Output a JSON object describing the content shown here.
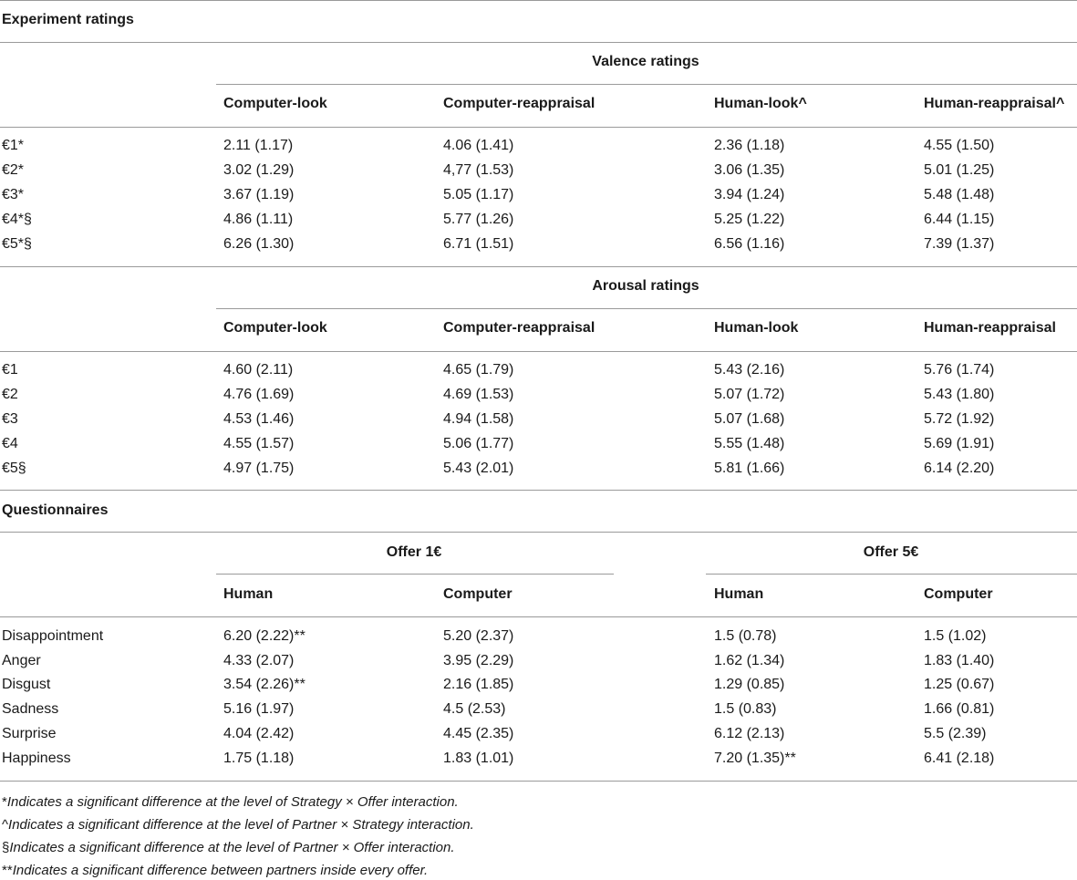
{
  "table": {
    "sections": {
      "experiment": "Experiment ratings",
      "questionnaires": "Questionnaires"
    },
    "valence": {
      "title": "Valence ratings",
      "columns": [
        "Computer-look",
        "Computer-reappraisal",
        "Human-look^",
        "Human-reappraisal^"
      ],
      "rows": [
        {
          "label": "€1*",
          "values": [
            "2.11 (1.17)",
            "4.06 (1.41)",
            "2.36 (1.18)",
            "4.55 (1.50)"
          ]
        },
        {
          "label": "€2*",
          "values": [
            "3.02 (1.29)",
            "4,77 (1.53)",
            "3.06 (1.35)",
            "5.01 (1.25)"
          ]
        },
        {
          "label": "€3*",
          "values": [
            "3.67 (1.19)",
            "5.05 (1.17)",
            "3.94 (1.24)",
            "5.48 (1.48)"
          ]
        },
        {
          "label": "€4*§",
          "values": [
            "4.86 (1.11)",
            "5.77 (1.26)",
            "5.25 (1.22)",
            "6.44 (1.15)"
          ]
        },
        {
          "label": "€5*§",
          "values": [
            "6.26 (1.30)",
            "6.71 (1.51)",
            "6.56 (1.16)",
            "7.39 (1.37)"
          ]
        }
      ]
    },
    "arousal": {
      "title": "Arousal ratings",
      "columns": [
        "Computer-look",
        "Computer-reappraisal",
        "Human-look",
        "Human-reappraisal"
      ],
      "rows": [
        {
          "label": "€1",
          "values": [
            "4.60 (2.11)",
            "4.65 (1.79)",
            "5.43 (2.16)",
            "5.76 (1.74)"
          ]
        },
        {
          "label": "€2",
          "values": [
            "4.76 (1.69)",
            "4.69 (1.53)",
            "5.07 (1.72)",
            "5.43 (1.80)"
          ]
        },
        {
          "label": "€3",
          "values": [
            "4.53 (1.46)",
            "4.94 (1.58)",
            "5.07 (1.68)",
            "5.72 (1.92)"
          ]
        },
        {
          "label": "€4",
          "values": [
            "4.55 (1.57)",
            "5.06 (1.77)",
            "5.55 (1.48)",
            "5.69 (1.91)"
          ]
        },
        {
          "label": "€5§",
          "values": [
            "4.97 (1.75)",
            "5.43 (2.01)",
            "5.81 (1.66)",
            "6.14 (2.20)"
          ]
        }
      ]
    },
    "questionnaire": {
      "groups": [
        "Offer 1€",
        "Offer 5€"
      ],
      "columns": [
        "Human",
        "Computer",
        "Human",
        "Computer"
      ],
      "rows": [
        {
          "label": "Disappointment",
          "values": [
            "6.20 (2.22)**",
            "5.20 (2.37)",
            "1.5 (0.78)",
            "1.5 (1.02)"
          ]
        },
        {
          "label": "Anger",
          "values": [
            "4.33 (2.07)",
            "3.95 (2.29)",
            "1.62 (1.34)",
            "1.83 (1.40)"
          ]
        },
        {
          "label": "Disgust",
          "values": [
            "3.54 (2.26)**",
            "2.16 (1.85)",
            "1.29 (0.85)",
            "1.25 (0.67)"
          ]
        },
        {
          "label": "Sadness",
          "values": [
            "5.16 (1.97)",
            "4.5 (2.53)",
            "1.5 (0.83)",
            "1.66 (0.81)"
          ]
        },
        {
          "label": "Surprise",
          "values": [
            "4.04 (2.42)",
            "4.45 (2.35)",
            "6.12 (2.13)",
            "5.5 (2.39)"
          ]
        },
        {
          "label": "Happiness",
          "values": [
            "1.75 (1.18)",
            "1.83 (1.01)",
            "7.20 (1.35)**",
            "6.41 (2.18)"
          ]
        }
      ]
    },
    "footnotes": [
      {
        "symbol": "*",
        "text": "Indicates a significant difference at the level of Strategy × Offer interaction."
      },
      {
        "symbol": "^",
        "text": "Indicates a significant difference at the level of Partner × Strategy interaction."
      },
      {
        "symbol": "§",
        "text": "Indicates a significant difference at the level of Partner × Offer interaction."
      },
      {
        "symbol": "**",
        "text": "Indicates a significant difference between partners inside every offer."
      }
    ]
  }
}
